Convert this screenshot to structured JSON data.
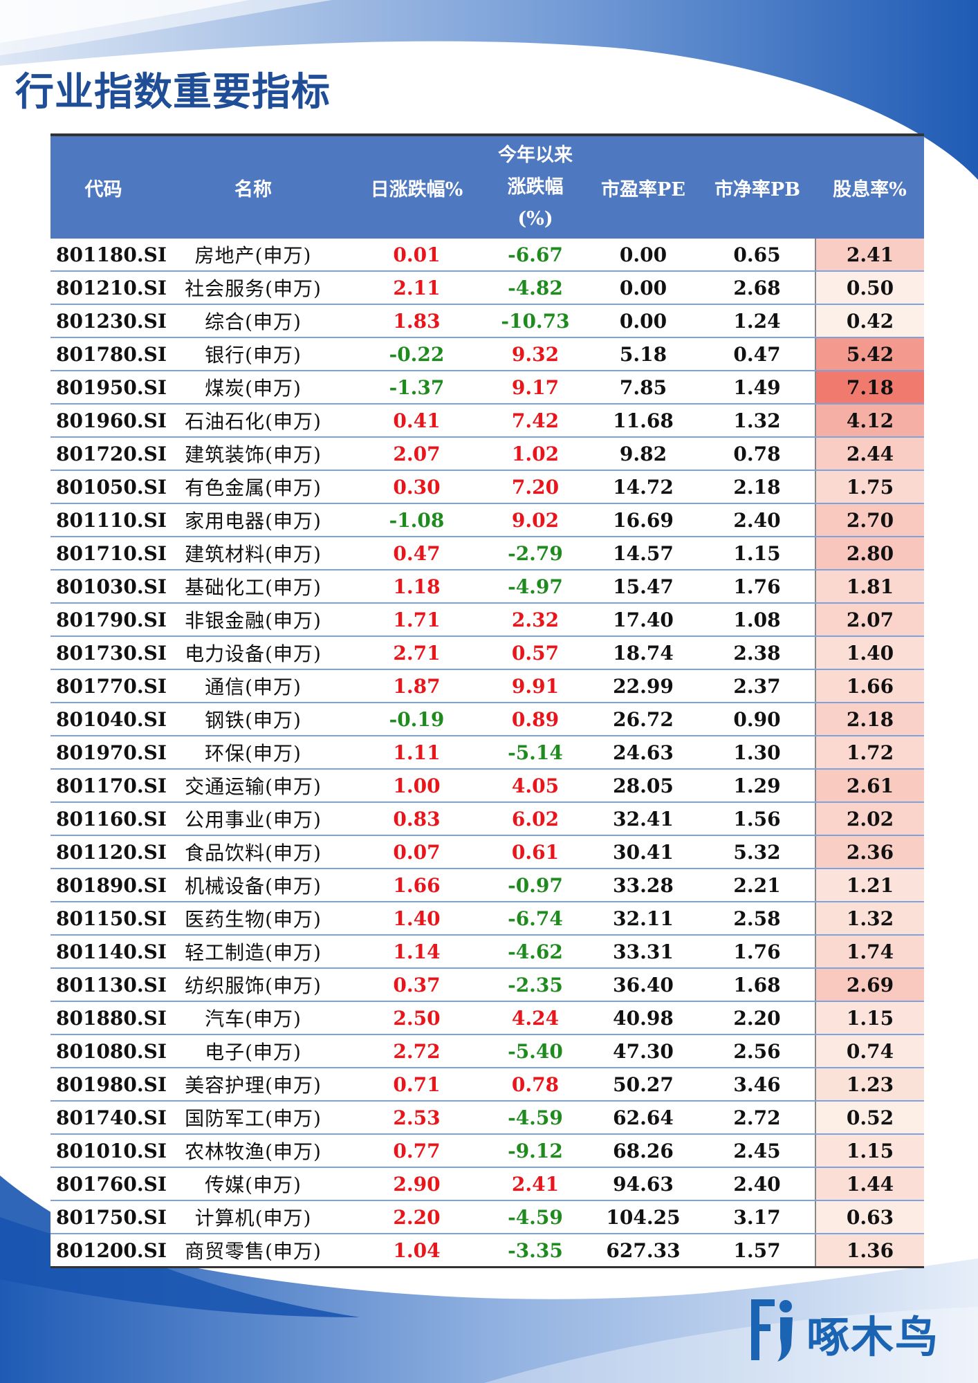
{
  "title": "行业指数重要指标",
  "colors": {
    "header_bg": "#4e78bf",
    "title": "#1f4e96",
    "up": "#e8161b",
    "down": "#1f8b1f",
    "dividend_heat_min": "#fdf0e8",
    "dividend_heat_max": "#f07a6e"
  },
  "table": {
    "headers": {
      "code": "代码",
      "name": "名称",
      "daily_change": "日涨跌幅%",
      "ytd_line1": "今年以来",
      "ytd_line2": "涨跌幅",
      "ytd_line3": "(%)",
      "pe": "市盈率PE",
      "pb": "市净率PB",
      "dividend_yield": "股息率%"
    },
    "rows": [
      {
        "code": "801180.SI",
        "name": "房地产(申万)",
        "daily": "0.01",
        "ytd": "-6.67",
        "pe": "0.00",
        "pb": "0.65",
        "dy": "2.41"
      },
      {
        "code": "801210.SI",
        "name": "社会服务(申万)",
        "daily": "2.11",
        "ytd": "-4.82",
        "pe": "0.00",
        "pb": "2.68",
        "dy": "0.50"
      },
      {
        "code": "801230.SI",
        "name": "综合(申万)",
        "daily": "1.83",
        "ytd": "-10.73",
        "pe": "0.00",
        "pb": "1.24",
        "dy": "0.42"
      },
      {
        "code": "801780.SI",
        "name": "银行(申万)",
        "daily": "-0.22",
        "ytd": "9.32",
        "pe": "5.18",
        "pb": "0.47",
        "dy": "5.42"
      },
      {
        "code": "801950.SI",
        "name": "煤炭(申万)",
        "daily": "-1.37",
        "ytd": "9.17",
        "pe": "7.85",
        "pb": "1.49",
        "dy": "7.18"
      },
      {
        "code": "801960.SI",
        "name": "石油石化(申万)",
        "daily": "0.41",
        "ytd": "7.42",
        "pe": "11.68",
        "pb": "1.32",
        "dy": "4.12"
      },
      {
        "code": "801720.SI",
        "name": "建筑装饰(申万)",
        "daily": "2.07",
        "ytd": "1.02",
        "pe": "9.82",
        "pb": "0.78",
        "dy": "2.44"
      },
      {
        "code": "801050.SI",
        "name": "有色金属(申万)",
        "daily": "0.30",
        "ytd": "7.20",
        "pe": "14.72",
        "pb": "2.18",
        "dy": "1.75"
      },
      {
        "code": "801110.SI",
        "name": "家用电器(申万)",
        "daily": "-1.08",
        "ytd": "9.02",
        "pe": "16.69",
        "pb": "2.40",
        "dy": "2.70"
      },
      {
        "code": "801710.SI",
        "name": "建筑材料(申万)",
        "daily": "0.47",
        "ytd": "-2.79",
        "pe": "14.57",
        "pb": "1.15",
        "dy": "2.80"
      },
      {
        "code": "801030.SI",
        "name": "基础化工(申万)",
        "daily": "1.18",
        "ytd": "-4.97",
        "pe": "15.47",
        "pb": "1.76",
        "dy": "1.81"
      },
      {
        "code": "801790.SI",
        "name": "非银金融(申万)",
        "daily": "1.71",
        "ytd": "2.32",
        "pe": "17.40",
        "pb": "1.08",
        "dy": "2.07"
      },
      {
        "code": "801730.SI",
        "name": "电力设备(申万)",
        "daily": "2.71",
        "ytd": "0.57",
        "pe": "18.74",
        "pb": "2.38",
        "dy": "1.40"
      },
      {
        "code": "801770.SI",
        "name": "通信(申万)",
        "daily": "1.87",
        "ytd": "9.91",
        "pe": "22.99",
        "pb": "2.37",
        "dy": "1.66"
      },
      {
        "code": "801040.SI",
        "name": "钢铁(申万)",
        "daily": "-0.19",
        "ytd": "0.89",
        "pe": "26.72",
        "pb": "0.90",
        "dy": "2.18"
      },
      {
        "code": "801970.SI",
        "name": "环保(申万)",
        "daily": "1.11",
        "ytd": "-5.14",
        "pe": "24.63",
        "pb": "1.30",
        "dy": "1.72"
      },
      {
        "code": "801170.SI",
        "name": "交通运输(申万)",
        "daily": "1.00",
        "ytd": "4.05",
        "pe": "28.05",
        "pb": "1.29",
        "dy": "2.61"
      },
      {
        "code": "801160.SI",
        "name": "公用事业(申万)",
        "daily": "0.83",
        "ytd": "6.02",
        "pe": "32.41",
        "pb": "1.56",
        "dy": "2.02"
      },
      {
        "code": "801120.SI",
        "name": "食品饮料(申万)",
        "daily": "0.07",
        "ytd": "0.61",
        "pe": "30.41",
        "pb": "5.32",
        "dy": "2.36"
      },
      {
        "code": "801890.SI",
        "name": "机械设备(申万)",
        "daily": "1.66",
        "ytd": "-0.97",
        "pe": "33.28",
        "pb": "2.21",
        "dy": "1.21"
      },
      {
        "code": "801150.SI",
        "name": "医药生物(申万)",
        "daily": "1.40",
        "ytd": "-6.74",
        "pe": "32.11",
        "pb": "2.58",
        "dy": "1.32"
      },
      {
        "code": "801140.SI",
        "name": "轻工制造(申万)",
        "daily": "1.14",
        "ytd": "-4.62",
        "pe": "33.31",
        "pb": "1.76",
        "dy": "1.74"
      },
      {
        "code": "801130.SI",
        "name": "纺织服饰(申万)",
        "daily": "0.37",
        "ytd": "-2.35",
        "pe": "36.40",
        "pb": "1.68",
        "dy": "2.69"
      },
      {
        "code": "801880.SI",
        "name": "汽车(申万)",
        "daily": "2.50",
        "ytd": "4.24",
        "pe": "40.98",
        "pb": "2.20",
        "dy": "1.15"
      },
      {
        "code": "801080.SI",
        "name": "电子(申万)",
        "daily": "2.72",
        "ytd": "-5.40",
        "pe": "47.30",
        "pb": "2.56",
        "dy": "0.74"
      },
      {
        "code": "801980.SI",
        "name": "美容护理(申万)",
        "daily": "0.71",
        "ytd": "0.78",
        "pe": "50.27",
        "pb": "3.46",
        "dy": "1.23"
      },
      {
        "code": "801740.SI",
        "name": "国防军工(申万)",
        "daily": "2.53",
        "ytd": "-4.59",
        "pe": "62.64",
        "pb": "2.72",
        "dy": "0.52"
      },
      {
        "code": "801010.SI",
        "name": "农林牧渔(申万)",
        "daily": "0.77",
        "ytd": "-9.12",
        "pe": "68.26",
        "pb": "2.45",
        "dy": "1.15"
      },
      {
        "code": "801760.SI",
        "name": "传媒(申万)",
        "daily": "2.90",
        "ytd": "2.41",
        "pe": "94.63",
        "pb": "2.40",
        "dy": "1.44"
      },
      {
        "code": "801750.SI",
        "name": "计算机(申万)",
        "daily": "2.20",
        "ytd": "-4.59",
        "pe": "104.25",
        "pb": "3.17",
        "dy": "0.63"
      },
      {
        "code": "801200.SI",
        "name": "商贸零售(申万)",
        "daily": "1.04",
        "ytd": "-3.35",
        "pe": "627.33",
        "pb": "1.57",
        "dy": "1.36"
      }
    ]
  },
  "logo": {
    "text": "啄木鸟",
    "icon": "woodpecker-logo-icon"
  }
}
